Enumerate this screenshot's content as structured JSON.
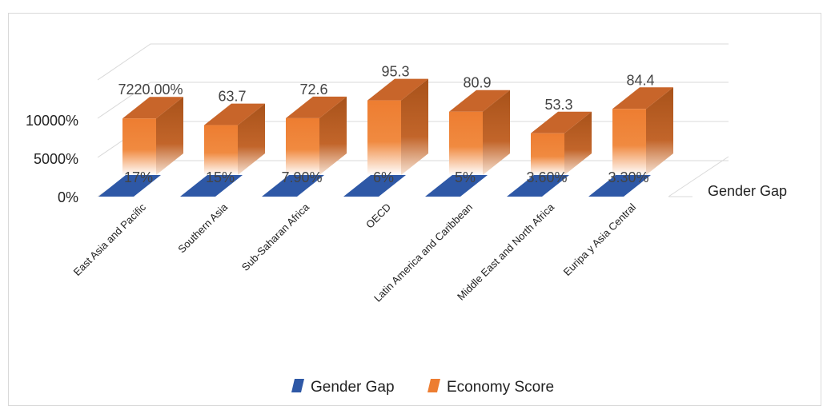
{
  "chart_data": {
    "type": "bar",
    "categories": [
      "East Asia and Pacific",
      "Southern Asia",
      "Sub-Saharan Africa",
      "OECD",
      "Latin America and Caribbean",
      "Middle East and North Africa",
      "Euripa y Asia Central"
    ],
    "series": [
      {
        "name": "Gender Gap",
        "values": [
          0.17,
          0.15,
          0.079,
          0.06,
          0.05,
          0.036,
          0.033
        ],
        "labels": [
          "17%",
          "15%",
          "7.90%",
          "6%",
          "5%",
          "3.60%",
          "3.30%"
        ],
        "color": "#2e58a6"
      },
      {
        "name": "Economy Score",
        "values": [
          72.2,
          63.7,
          72.6,
          95.3,
          80.9,
          53.3,
          84.4
        ],
        "labels": [
          "7220.00%",
          "63.7",
          "72.6",
          "95.3",
          "80.9",
          "53.3",
          "84.4"
        ],
        "color": "#ed7d31"
      }
    ],
    "yticks": [
      "0%",
      "5000%",
      "10000%"
    ],
    "depth_axis_label": "Gender Gap",
    "legend": [
      "Gender Gap",
      "Economy Score"
    ],
    "legend_position": "bottom",
    "ylim": [
      0,
      120
    ],
    "grid": true,
    "style": "3d-column"
  }
}
